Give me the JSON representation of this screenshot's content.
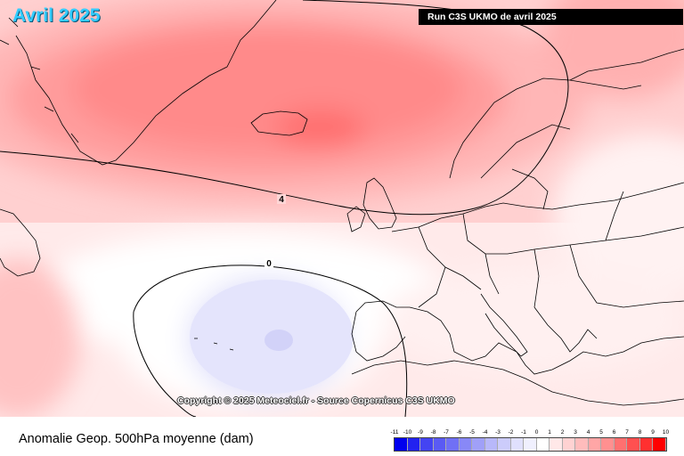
{
  "header": {
    "month_title": "Avril 2025",
    "run_label": "Run C3S UKMO de avril 2025"
  },
  "map": {
    "copyright": "Copyright © 2025 Meteociel.fr - Source Copernicus C3S UKMO",
    "contour_labels": [
      "4",
      "0"
    ],
    "colors": {
      "land_border": "#000000",
      "contour": "#000000"
    }
  },
  "footer": {
    "field_label": "Anomalie Geop. 500hPa moyenne (dam)"
  },
  "legend": {
    "ticks": [
      "-11",
      "-10",
      "-9",
      "-8",
      "-7",
      "-6",
      "-5",
      "-4",
      "-3",
      "-2",
      "-1",
      "0",
      "1",
      "2",
      "3",
      "4",
      "5",
      "6",
      "7",
      "8",
      "9",
      "10"
    ],
    "colors": [
      "#0000ee",
      "#2222f0",
      "#4444f2",
      "#5a5af4",
      "#7070f5",
      "#8888f7",
      "#a0a0f8",
      "#b8b8fa",
      "#ccccfb",
      "#e0e0fd",
      "#f0f0fe",
      "#ffffff",
      "#ffe8e8",
      "#ffd2d2",
      "#ffbcbc",
      "#ffa6a6",
      "#ff9090",
      "#ff7070",
      "#ff5050",
      "#ff3030",
      "#ff0000"
    ]
  }
}
